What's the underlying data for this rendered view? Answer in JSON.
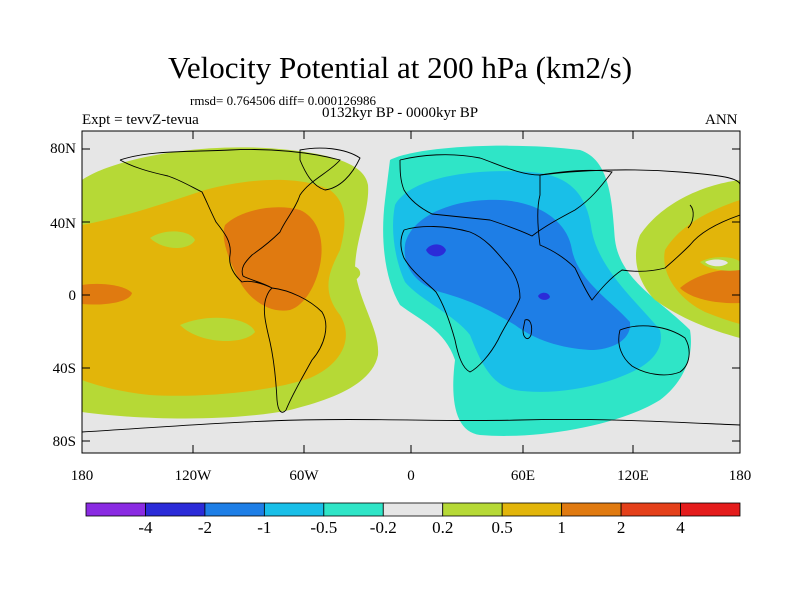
{
  "title": "Velocity Potential at 200 hPa (km2/s)",
  "stats": "rmsd= 0.764506 diff= 0.000126986",
  "period": "0132kyr BP - 0000kyr BP",
  "experiment": "Expt = tevvZ-tevua",
  "season": "ANN",
  "y_axis": {
    "ticks": [
      "80N",
      "40N",
      "0",
      "40S",
      "80S"
    ]
  },
  "x_axis": {
    "ticks": [
      "180",
      "120W",
      "60W",
      "0",
      "60E",
      "120E",
      "180"
    ]
  },
  "colorbar": {
    "labels": [
      "-4",
      "-2",
      "-1",
      "-0.5",
      "-0.2",
      "0.2",
      "0.5",
      "1",
      "2",
      "4"
    ],
    "colors": [
      "#8a2be2",
      "#2b2bd8",
      "#1e7ee6",
      "#19bfe8",
      "#2fe5c7",
      "#e6e6e6",
      "#b6d936",
      "#e2b50a",
      "#e07a10",
      "#e4401a",
      "#e41c1c"
    ]
  },
  "colors": {
    "ocean_background": "#e6e6e6",
    "coastline": "#000000"
  }
}
